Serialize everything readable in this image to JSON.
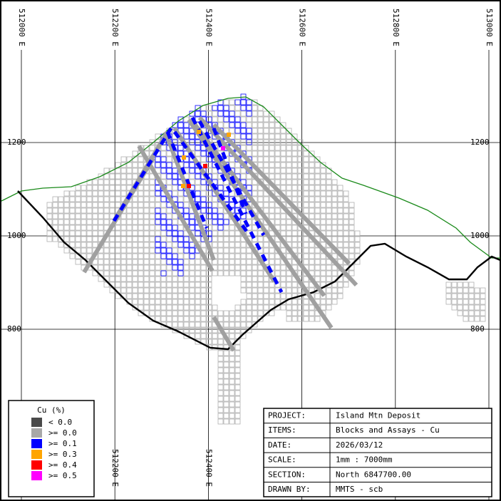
{
  "axes": {
    "xticks_top": [
      {
        "value": 512000,
        "label": "512000 E"
      },
      {
        "value": 512200,
        "label": "512200 E"
      },
      {
        "value": 512400,
        "label": "512400 E"
      },
      {
        "value": 512600,
        "label": "512600 E"
      },
      {
        "value": 512800,
        "label": "512800 E"
      },
      {
        "value": 513000,
        "label": "513000 E"
      }
    ],
    "xticks_bottom": [
      {
        "value": 512200,
        "label": "512200 E"
      },
      {
        "value": 512400,
        "label": "512400 E"
      }
    ],
    "yticks_left": [
      1200,
      1000,
      800
    ],
    "yticks_right": [
      1200,
      1000,
      800
    ]
  },
  "legend": {
    "title": "Cu (%)",
    "items": [
      {
        "label": "<  0.0",
        "color": "#4a4a4a"
      },
      {
        "label": ">= 0.0",
        "color": "#a8a8a8"
      },
      {
        "label": ">= 0.1",
        "color": "#0000ff"
      },
      {
        "label": ">= 0.3",
        "color": "#ffa500"
      },
      {
        "label": ">= 0.4",
        "color": "#ff0000"
      },
      {
        "label": ">= 0.5",
        "color": "#ff00ff"
      }
    ]
  },
  "info": {
    "rows": [
      [
        "PROJECT:",
        "Island Mtn Deposit"
      ],
      [
        "ITEMS:",
        "Blocks and Assays - Cu"
      ],
      [
        "DATE:",
        "2026/03/12"
      ],
      [
        "SCALE:",
        "1mm : 7000mm"
      ],
      [
        "SECTION:",
        "North 6847700.00"
      ],
      [
        "DRAWN BY:",
        "MMTS - scb"
      ]
    ]
  }
}
